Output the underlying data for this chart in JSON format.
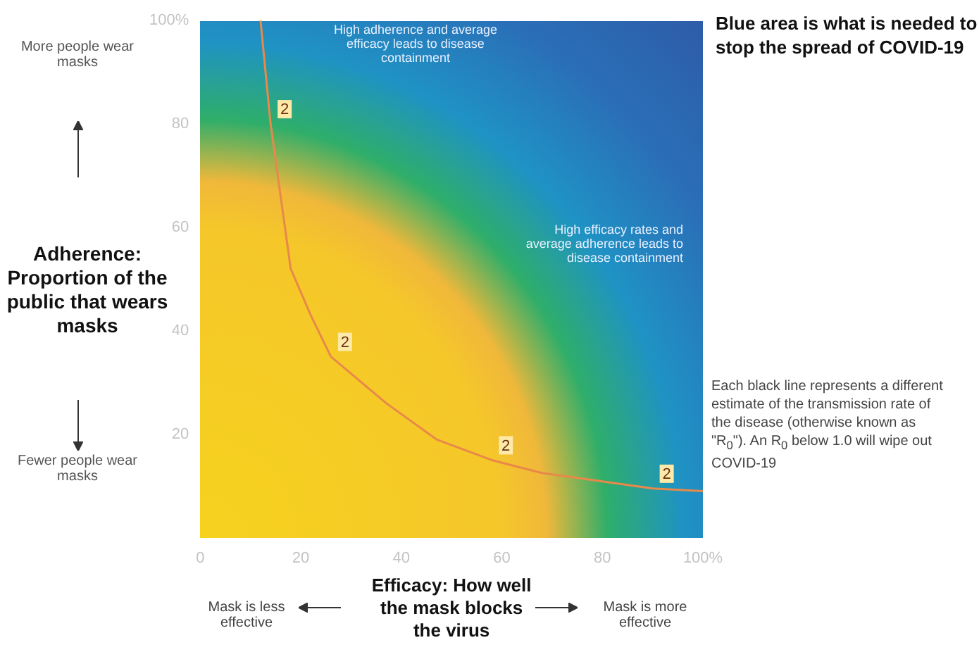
{
  "chart_data": {
    "type": "line",
    "xlabel": "Efficacy: How well the mask blocks the virus",
    "ylabel": "Adherence: Proportion of the public that wears masks",
    "xlim": [
      0,
      100
    ],
    "xticks": [
      0,
      20,
      40,
      60,
      80,
      {
        "value": 100,
        "label": "100%"
      }
    ],
    "ylim": [
      0,
      100
    ],
    "yticks": [
      20,
      40,
      60,
      80,
      {
        "value": 100,
        "label": "100%"
      }
    ],
    "series": [
      {
        "name": "2",
        "color": "#e8894a",
        "x": [
          12,
          14,
          18,
          22,
          26,
          37,
          47,
          58,
          68,
          79,
          90,
          100
        ],
        "values": [
          100,
          80,
          52,
          43,
          35,
          26,
          19,
          15,
          12.5,
          11,
          9.5,
          9
        ]
      }
    ],
    "grid": false,
    "legend": false,
    "marker": "none",
    "line_style": "solid",
    "annotations": [
      "Blue area is what is needed to stop the spread of COVID-19",
      "Each black line represents a different estimate of the transmission rate of the disease (otherwise known as \"R$_{0}$\"). An R$_{0}$ below 1.0 will wipe out COVID-19",
      "More people wear masks",
      "Fewer people wear masks",
      "Mask is less effective",
      "Mask is more effective",
      "High adherence and average efficacy leads to disease containment",
      "High efficacy rates and average adherence leads to disease containment"
    ]
  }
}
